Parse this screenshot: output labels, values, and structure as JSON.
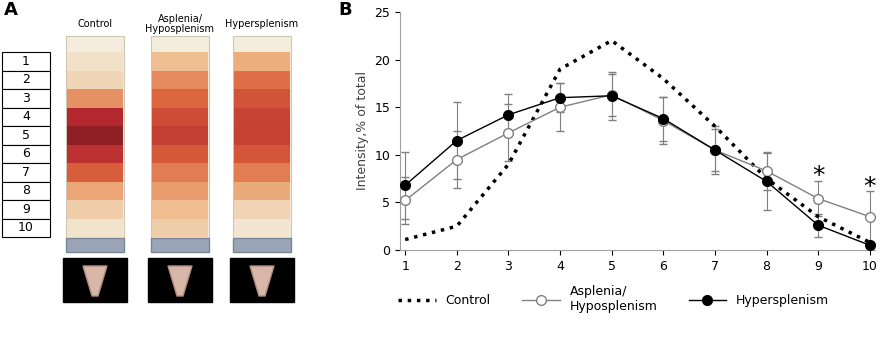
{
  "chart_data": {
    "type": "line",
    "panel_label": "B",
    "ylabel": "Intensity,% of total",
    "x": [
      1,
      2,
      3,
      4,
      5,
      6,
      7,
      8,
      9,
      10
    ],
    "xlim": [
      0.9,
      10.1
    ],
    "xticks": [
      1,
      2,
      3,
      4,
      5,
      6,
      7,
      8,
      9,
      10
    ],
    "ylim": [
      0,
      25
    ],
    "yticks": [
      0,
      5,
      10,
      15,
      20,
      25
    ],
    "grid": false,
    "legend": "bottom",
    "series": [
      {
        "name": "Control",
        "color": "#000000",
        "line_style": "dotted",
        "marker": "none",
        "values": [
          1.1,
          2.5,
          9.0,
          19.0,
          22.0,
          18.0,
          13.0,
          7.5,
          3.5,
          0.8
        ]
      },
      {
        "name": "Asplenia/\nHyposplenism",
        "color": "#808080",
        "line_style": "solid",
        "marker": "open_circle",
        "values": [
          5.2,
          9.5,
          12.3,
          15.0,
          16.3,
          13.6,
          10.5,
          8.3,
          5.4,
          3.5
        ],
        "errors": [
          2.5,
          3.0,
          3.0,
          2.5,
          2.2,
          2.5,
          2.2,
          2.0,
          1.8,
          2.7
        ]
      },
      {
        "name": "Hypersplenism",
        "color": "#000000",
        "line_style": "solid",
        "marker": "filled_circle",
        "values": [
          6.8,
          11.5,
          14.2,
          16.0,
          16.2,
          13.8,
          10.5,
          7.2,
          2.6,
          0.5
        ],
        "errors": [
          3.5,
          4.0,
          2.2,
          1.5,
          2.5,
          2.3,
          2.5,
          3.0,
          1.2,
          0.3
        ]
      }
    ],
    "annotations": [
      {
        "x": 9,
        "y": 7.8,
        "text": "*"
      },
      {
        "x": 10,
        "y": 6.6,
        "text": "*"
      }
    ]
  },
  "photo": {
    "panel_label": "A",
    "fractions": [
      1,
      2,
      3,
      4,
      5,
      6,
      7,
      8,
      9,
      10
    ],
    "tubes": [
      "Control",
      "Asplenia/\nHyposplenism",
      "Hypersplenism"
    ]
  }
}
